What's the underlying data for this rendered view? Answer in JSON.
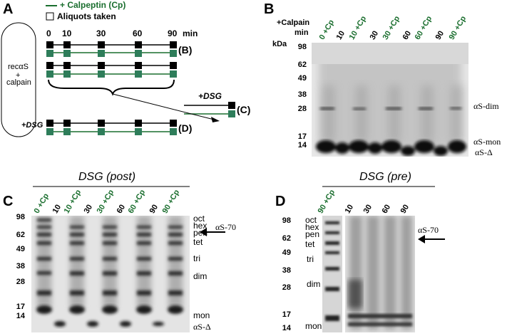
{
  "panels": {
    "A": {
      "letter": "A",
      "legend_line": "+ Calpeptin (Cp)",
      "legend_box": "Aliquots taken",
      "tube_label_1": "recαS",
      "tube_label_2": "+",
      "tube_label_3": "calpain",
      "timepoints": [
        "0",
        "10",
        "30",
        "60",
        "90"
      ],
      "time_unit": "min",
      "row_labels": [
        "(B)",
        "(C)",
        "(D)"
      ],
      "dsg_label": "+DSG",
      "dsg_label_2": "+DSG",
      "colors": {
        "control": "#000000",
        "calpeptin": "#1a6e2e"
      }
    },
    "B": {
      "letter": "B",
      "header": "+Calpain",
      "min_label": "min",
      "kda_label": "kDa",
      "lanes": [
        "0 +Cp",
        "10",
        "10 +Cp",
        "30",
        "30 +Cp",
        "60",
        "60 +Cp",
        "90",
        "90 +Cp"
      ],
      "markers": [
        "98",
        "62",
        "49",
        "38",
        "28",
        "17",
        "14"
      ],
      "bands": [
        "αS-dim",
        "αS-mon",
        "αS-Δ"
      ]
    },
    "C": {
      "letter": "C",
      "title": "DSG (post)",
      "lanes": [
        "0 +Cp",
        "10",
        "10 +Cp",
        "30",
        "30 +Cp",
        "60",
        "60 +Cp",
        "90",
        "90 +Cp"
      ],
      "markers": [
        "98",
        "62",
        "49",
        "38",
        "28",
        "17",
        "14"
      ],
      "bands": [
        "oct",
        "hex",
        "pen",
        "tet",
        "tri",
        "dim",
        "mon",
        "αS-Δ"
      ],
      "arrow_label": "αS-70"
    },
    "D": {
      "letter": "D",
      "title": "DSG (pre)",
      "lanes": [
        "90 +Cp",
        "10",
        "30",
        "60",
        "90"
      ],
      "markers": [
        "98",
        "62",
        "49",
        "38",
        "28",
        "17",
        "14"
      ],
      "bands": [
        "oct",
        "hex",
        "pen",
        "tet",
        "tri",
        "dim",
        "mon"
      ],
      "arrow_label": "αS-70"
    }
  }
}
